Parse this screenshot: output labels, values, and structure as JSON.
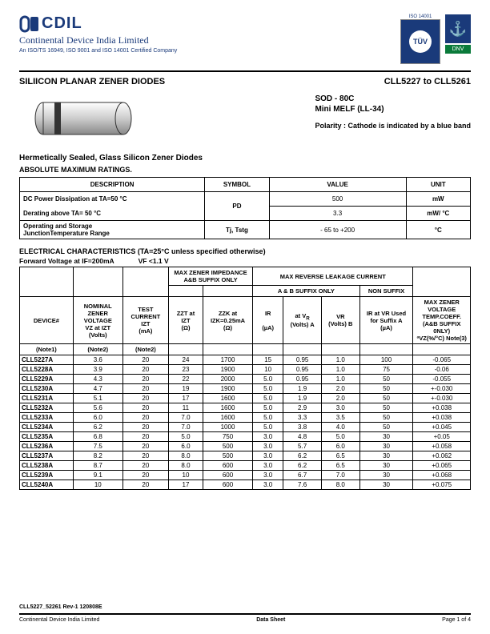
{
  "header": {
    "logo_text": "CDIL",
    "company": "Continental Device India Limited",
    "iso_line": "An ISO/TS 16949, ISO 9001 and ISO 14001 Certified Company",
    "iso14001": "ISO 14001",
    "tuv": "TÜV",
    "dnv": "DNV"
  },
  "title": {
    "left": "SILIICON PLANAR ZENER DIODES",
    "right": "CLL5227 to CLL5261"
  },
  "package": {
    "sod": "SOD - 80C",
    "melf": "Mini MELF (LL-34)",
    "polarity": "Polarity : Cathode is indicated by a blue band"
  },
  "sections": {
    "hermetic": "Hermetically Sealed, Glass Silicon Zener Diodes",
    "abs_max": "ABSOLUTE MAXIMUM RATINGS.",
    "elec": "ELECTRICAL CHARACTERISTICS (TA=25°C unless specified otherwise)"
  },
  "ratings": {
    "columns": {
      "desc": "DESCRIPTION",
      "sym": "SYMBOL",
      "val": "VALUE",
      "unit": "UNIT"
    },
    "rows": [
      {
        "desc1": "DC Power Dissipation at TA=50 °C",
        "desc2": "Derating above TA= 50 °C",
        "sym": "PD",
        "val1": "500",
        "val2": "3.3",
        "unit1": "mW",
        "unit2": "mW/ °C"
      },
      {
        "desc1": "Operating and Storage",
        "desc2": "JunctionTemperature Range",
        "sym": "Tj, Tstg",
        "val1": "- 65 to +200",
        "unit1": "°C"
      }
    ]
  },
  "forward": {
    "fv": "Forward Voltage at IF=200mA",
    "vf": "VF <1.1 V"
  },
  "elec_headers": {
    "max_zener": "MAX ZENER IMPEDANCE A&B SUFFIX ONLY",
    "max_rev": "MAX REVERSE LEAKAGE CURRENT",
    "device": "DEVICE#",
    "nominal": "NOMINAL ZENER VOLTAGE",
    "vz_izt": "VZ at IZT",
    "volts": "(Volts)",
    "test": "TEST CURRENT",
    "izt": "IZT",
    "ma": "(mA)",
    "zzt": "ZZT at",
    "zzk": "ZZK at",
    "izt2": "IZT",
    "izk": "IZK=0.25mA",
    "ohm": "(Ω)",
    "ab_suffix": "A & B SUFFIX ONLY",
    "non_suffix": "NON SUFFIX",
    "ir_vr": "IR at VR",
    "ir_vr_used": "IR at VR Used",
    "suffix_a": "for Suffix A",
    "ir": "IR",
    "ua": "(µA)",
    "vr": "VR",
    "volts_a": "(Volts) A",
    "volts_b": "(Volts) B",
    "max_zv": "MAX ZENER VOLTAGE TEMP.COEFF.",
    "ab_only": "(A&B SUFFIX 0NLY)",
    "avz": "ªVZ(%/°C) Note(3)",
    "note1": "(Note1)",
    "note2": "(Note2)"
  },
  "elec_rows": [
    {
      "dev": "CLL5227A",
      "vz": "3.6",
      "izt": "20",
      "zzt": "24",
      "zzk": "1700",
      "ir": "15",
      "vra": "0.95",
      "vrb": "1.0",
      "irn": "100",
      "tc": "-0.065"
    },
    {
      "dev": "CLL5228A",
      "vz": "3.9",
      "izt": "20",
      "zzt": "23",
      "zzk": "1900",
      "ir": "10",
      "vra": "0.95",
      "vrb": "1.0",
      "irn": "75",
      "tc": "-0.06"
    },
    {
      "dev": "CLL5229A",
      "vz": "4.3",
      "izt": "20",
      "zzt": "22",
      "zzk": "2000",
      "ir": "5.0",
      "vra": "0.95",
      "vrb": "1.0",
      "irn": "50",
      "tc": "-0.055"
    },
    {
      "dev": "CLL5230A",
      "vz": "4.7",
      "izt": "20",
      "zzt": "19",
      "zzk": "1900",
      "ir": "5.0",
      "vra": "1.9",
      "vrb": "2.0",
      "irn": "50",
      "tc": "+-0.030"
    },
    {
      "dev": "CLL5231A",
      "vz": "5.1",
      "izt": "20",
      "zzt": "17",
      "zzk": "1600",
      "ir": "5.0",
      "vra": "1.9",
      "vrb": "2.0",
      "irn": "50",
      "tc": "+-0.030"
    },
    {
      "dev": "CLL5232A",
      "vz": "5.6",
      "izt": "20",
      "zzt": "11",
      "zzk": "1600",
      "ir": "5.0",
      "vra": "2.9",
      "vrb": "3.0",
      "irn": "50",
      "tc": "+0.038"
    },
    {
      "dev": "CLL5233A",
      "vz": "6.0",
      "izt": "20",
      "zzt": "7.0",
      "zzk": "1600",
      "ir": "5.0",
      "vra": "3.3",
      "vrb": "3.5",
      "irn": "50",
      "tc": "+0.038"
    },
    {
      "dev": "CLL5234A",
      "vz": "6.2",
      "izt": "20",
      "zzt": "7.0",
      "zzk": "1000",
      "ir": "5.0",
      "vra": "3.8",
      "vrb": "4.0",
      "irn": "50",
      "tc": "+0.045"
    },
    {
      "dev": "CLL5235A",
      "vz": "6.8",
      "izt": "20",
      "zzt": "5.0",
      "zzk": "750",
      "ir": "3.0",
      "vra": "4.8",
      "vrb": "5.0",
      "irn": "30",
      "tc": "+0.05"
    },
    {
      "dev": "CLL5236A",
      "vz": "7.5",
      "izt": "20",
      "zzt": "6.0",
      "zzk": "500",
      "ir": "3.0",
      "vra": "5.7",
      "vrb": "6.0",
      "irn": "30",
      "tc": "+0.058"
    },
    {
      "dev": "CLL5237A",
      "vz": "8.2",
      "izt": "20",
      "zzt": "8.0",
      "zzk": "500",
      "ir": "3.0",
      "vra": "6.2",
      "vrb": "6.5",
      "irn": "30",
      "tc": "+0.062"
    },
    {
      "dev": "CLL5238A",
      "vz": "8.7",
      "izt": "20",
      "zzt": "8.0",
      "zzk": "600",
      "ir": "3.0",
      "vra": "6.2",
      "vrb": "6.5",
      "irn": "30",
      "tc": "+0.065"
    },
    {
      "dev": "CLL5239A",
      "vz": "9.1",
      "izt": "20",
      "zzt": "10",
      "zzk": "600",
      "ir": "3.0",
      "vra": "6.7",
      "vrb": "7.0",
      "irn": "30",
      "tc": "+0.068"
    },
    {
      "dev": "CLL5240A",
      "vz": "10",
      "izt": "20",
      "zzt": "17",
      "zzk": "600",
      "ir": "3.0",
      "vra": "7.6",
      "vrb": "8.0",
      "irn": "30",
      "tc": "+0.075"
    }
  ],
  "footer": {
    "rev": "CLL5227_52261 Rev-1 120808E",
    "company": "Continental Device India Limited",
    "ds": "Data Sheet",
    "page": "Page 1 of 4"
  },
  "colors": {
    "brand_blue": "#1a3a7a",
    "dnv_green": "#0a7a3a"
  }
}
